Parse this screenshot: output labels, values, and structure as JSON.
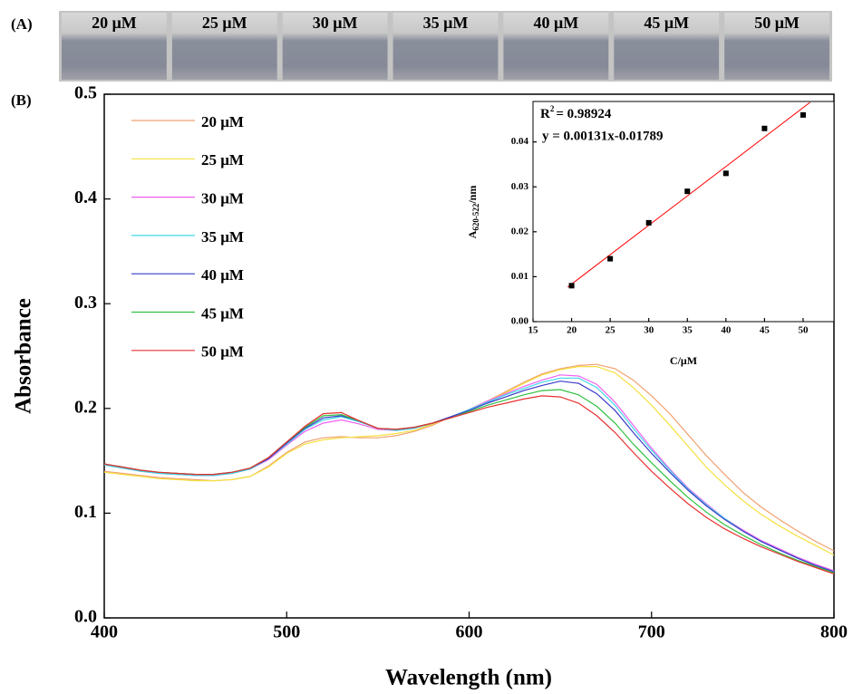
{
  "panel_a": {
    "label": "(A)",
    "samples": [
      "20 μM",
      "25 μM",
      "30 μM",
      "35 μM",
      "40 μM",
      "45 μM",
      "50 μM"
    ]
  },
  "panel_b": {
    "label": "(B)"
  },
  "chart_data": [
    {
      "type": "line",
      "xlabel": "Wavelength (nm)",
      "ylabel": "Absorbance",
      "xlim": [
        400,
        800
      ],
      "xticks": [
        400,
        500,
        600,
        700,
        800
      ],
      "ylim": [
        0,
        0.5
      ],
      "yticks": [
        {
          "value": 0,
          "label": "0.0"
        },
        0.1,
        0.2,
        0.3,
        0.4,
        0.5
      ],
      "legend": "upper left",
      "x": [
        400,
        410,
        420,
        430,
        440,
        450,
        460,
        470,
        480,
        490,
        500,
        510,
        520,
        530,
        540,
        550,
        560,
        570,
        580,
        590,
        600,
        610,
        620,
        630,
        640,
        650,
        660,
        670,
        680,
        690,
        700,
        710,
        720,
        730,
        740,
        750,
        760,
        770,
        780,
        790,
        800
      ],
      "series": [
        {
          "name": "20 μM",
          "color": "#f0a070",
          "values": [
            0.14,
            0.138,
            0.136,
            0.134,
            0.133,
            0.132,
            0.131,
            0.132,
            0.135,
            0.145,
            0.158,
            0.168,
            0.172,
            0.173,
            0.172,
            0.172,
            0.174,
            0.178,
            0.184,
            0.192,
            0.199,
            0.207,
            0.216,
            0.225,
            0.233,
            0.238,
            0.241,
            0.242,
            0.238,
            0.227,
            0.212,
            0.195,
            0.175,
            0.155,
            0.137,
            0.12,
            0.106,
            0.094,
            0.083,
            0.073,
            0.064
          ]
        },
        {
          "name": "25 μM",
          "color": "#f5e040",
          "values": [
            0.139,
            0.137,
            0.135,
            0.133,
            0.132,
            0.131,
            0.131,
            0.132,
            0.135,
            0.144,
            0.157,
            0.166,
            0.17,
            0.172,
            0.173,
            0.174,
            0.176,
            0.179,
            0.185,
            0.192,
            0.199,
            0.207,
            0.215,
            0.224,
            0.232,
            0.237,
            0.24,
            0.24,
            0.234,
            0.22,
            0.203,
            0.184,
            0.164,
            0.144,
            0.127,
            0.112,
            0.099,
            0.088,
            0.078,
            0.069,
            0.06
          ]
        },
        {
          "name": "30 μM",
          "color": "#f060f0",
          "values": [
            0.146,
            0.143,
            0.14,
            0.138,
            0.137,
            0.136,
            0.136,
            0.138,
            0.142,
            0.151,
            0.165,
            0.178,
            0.186,
            0.189,
            0.185,
            0.18,
            0.179,
            0.181,
            0.186,
            0.192,
            0.199,
            0.207,
            0.214,
            0.221,
            0.227,
            0.232,
            0.231,
            0.223,
            0.206,
            0.184,
            0.162,
            0.142,
            0.124,
            0.109,
            0.095,
            0.084,
            0.074,
            0.066,
            0.058,
            0.051,
            0.045
          ]
        },
        {
          "name": "35 μM",
          "color": "#40d8e8",
          "values": [
            0.146,
            0.143,
            0.14,
            0.138,
            0.137,
            0.136,
            0.136,
            0.138,
            0.142,
            0.152,
            0.166,
            0.18,
            0.189,
            0.192,
            0.187,
            0.181,
            0.179,
            0.181,
            0.186,
            0.192,
            0.199,
            0.206,
            0.213,
            0.219,
            0.225,
            0.229,
            0.229,
            0.22,
            0.203,
            0.181,
            0.16,
            0.141,
            0.123,
            0.108,
            0.095,
            0.083,
            0.073,
            0.065,
            0.057,
            0.05,
            0.044
          ]
        },
        {
          "name": "40 μM",
          "color": "#3a3ac8",
          "values": [
            0.147,
            0.144,
            0.141,
            0.139,
            0.138,
            0.137,
            0.137,
            0.139,
            0.143,
            0.152,
            0.167,
            0.181,
            0.191,
            0.193,
            0.188,
            0.181,
            0.18,
            0.182,
            0.186,
            0.192,
            0.198,
            0.205,
            0.211,
            0.217,
            0.222,
            0.226,
            0.224,
            0.214,
            0.198,
            0.177,
            0.157,
            0.139,
            0.122,
            0.107,
            0.094,
            0.083,
            0.073,
            0.065,
            0.057,
            0.05,
            0.044
          ]
        },
        {
          "name": "45 μM",
          "color": "#30c040",
          "values": [
            0.147,
            0.144,
            0.141,
            0.139,
            0.138,
            0.137,
            0.137,
            0.139,
            0.143,
            0.153,
            0.168,
            0.182,
            0.193,
            0.194,
            0.188,
            0.181,
            0.18,
            0.182,
            0.186,
            0.191,
            0.197,
            0.203,
            0.208,
            0.213,
            0.217,
            0.218,
            0.213,
            0.202,
            0.186,
            0.166,
            0.148,
            0.131,
            0.115,
            0.101,
            0.089,
            0.079,
            0.07,
            0.062,
            0.055,
            0.049,
            0.043
          ]
        },
        {
          "name": "50 μM",
          "color": "#e83030",
          "values": [
            0.147,
            0.144,
            0.141,
            0.139,
            0.138,
            0.137,
            0.137,
            0.139,
            0.143,
            0.153,
            0.168,
            0.183,
            0.195,
            0.196,
            0.188,
            0.181,
            0.18,
            0.182,
            0.186,
            0.191,
            0.196,
            0.201,
            0.205,
            0.209,
            0.212,
            0.211,
            0.205,
            0.193,
            0.177,
            0.158,
            0.14,
            0.124,
            0.109,
            0.096,
            0.085,
            0.076,
            0.068,
            0.061,
            0.054,
            0.048,
            0.042
          ]
        }
      ]
    },
    {
      "type": "scatter",
      "xlabel": "C/μM",
      "ylabel": {
        "main": "A",
        "sub": "620-522",
        "unit": "/nm"
      },
      "annotations": [
        {
          "main": "R",
          "sup": "2",
          "rest": "= 0.98924"
        },
        {
          "main": "y = 0.00131x-0.01789"
        }
      ],
      "xlim": [
        15,
        54
      ],
      "xticks": [
        15,
        20,
        25,
        30,
        35,
        40,
        45,
        50
      ],
      "ylim": [
        0,
        0.049
      ],
      "yticks": [
        {
          "value": 0,
          "label": "0.00"
        },
        0.01,
        0.02,
        0.03,
        0.04
      ],
      "color": "#000000",
      "x": [
        20,
        25,
        30,
        35,
        40,
        45,
        50
      ],
      "values": [
        0.008,
        0.014,
        0.022,
        0.029,
        0.033,
        0.043,
        0.046
      ],
      "fit": {
        "color": "#ff0000",
        "x": [
          19.5,
          50.9
        ],
        "values": [
          0.0077,
          0.0488
        ]
      }
    }
  ]
}
